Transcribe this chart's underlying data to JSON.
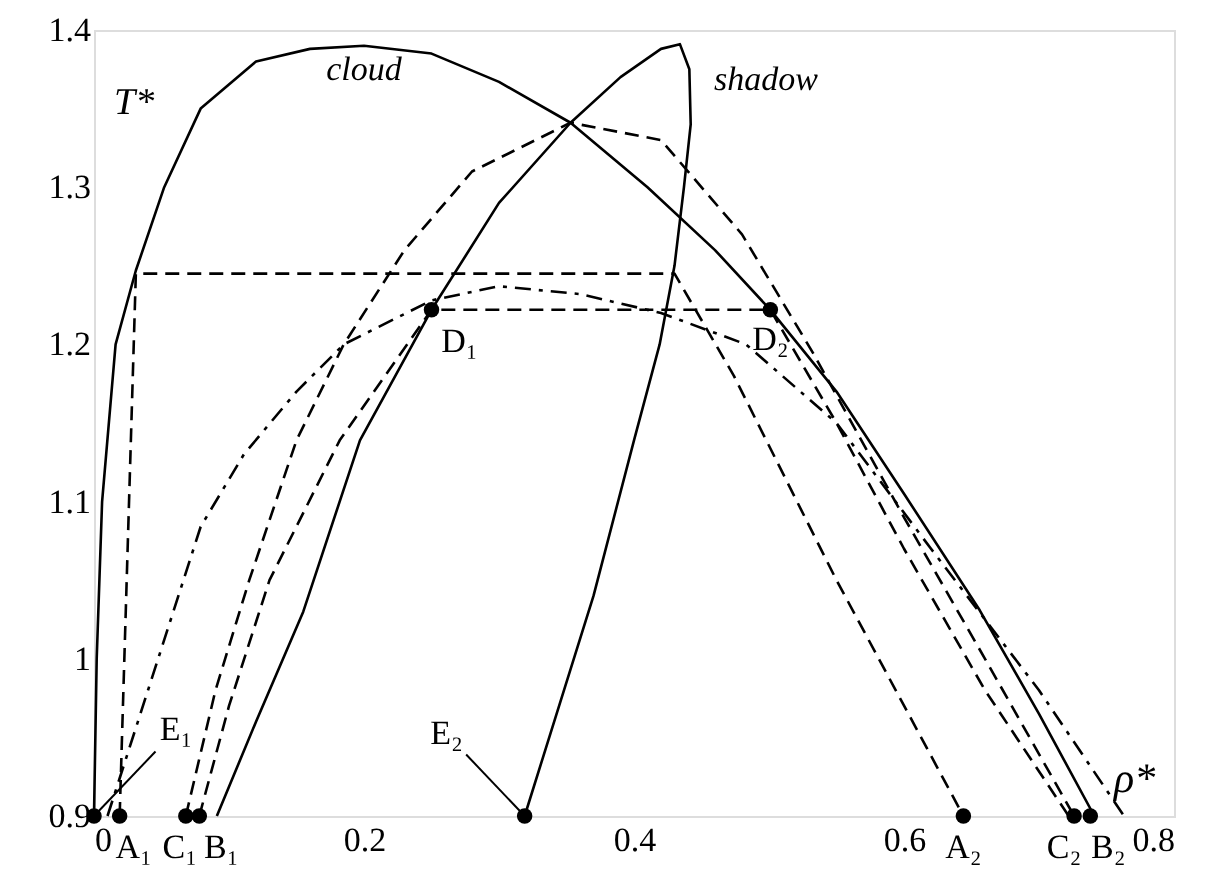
{
  "chart_data": {
    "type": "line",
    "xlabel": "ρ*",
    "ylabel": "T*",
    "xlim": [
      0,
      0.8
    ],
    "ylim": [
      0.9,
      1.4
    ],
    "xticks": [
      0,
      0.2,
      0.4,
      0.6,
      0.8
    ],
    "yticks": [
      0.9,
      1,
      1.1,
      1.2,
      1.3,
      1.4
    ],
    "grid": false,
    "marker": "none",
    "series": [
      {
        "color": "#000000",
        "line_style": "solid",
        "x": [
          0,
          0.002,
          0.006,
          0.016,
          0.031,
          0.052,
          0.079,
          0.12,
          0.16,
          0.2,
          0.25,
          0.3,
          0.353,
          0.41,
          0.46,
          0.501,
          0.55,
          0.6,
          0.656,
          0.7,
          0.741
        ],
        "values": [
          0.9,
          1.0,
          1.1,
          1.2,
          1.247,
          1.3,
          1.35,
          1.38,
          1.388,
          1.39,
          1.385,
          1.367,
          1.341,
          1.3,
          1.26,
          1.222,
          1.17,
          1.105,
          1.031,
          0.965,
          0.9
        ]
      },
      {
        "color": "#000000",
        "line_style": "solid",
        "x": [
          0.091,
          0.12,
          0.155,
          0.197,
          0.25,
          0.3,
          0.353,
          0.39,
          0.42,
          0.434,
          0.441,
          0.442,
          0.437,
          0.43,
          0.419,
          0.4,
          0.37,
          0.319
        ],
        "values": [
          0.9,
          0.96,
          1.03,
          1.139,
          1.222,
          1.29,
          1.341,
          1.37,
          1.388,
          1.391,
          1.375,
          1.34,
          1.3,
          1.25,
          1.2,
          1.139,
          1.04,
          0.9
        ]
      },
      {
        "color": "#000000",
        "line_style": "dashed",
        "x": [
          0.068,
          0.09,
          0.115,
          0.15,
          0.185,
          0.23,
          0.28,
          0.353,
          0.42,
          0.48,
          0.533,
          0.6,
          0.66,
          0.726
        ],
        "values": [
          0.9,
          0.98,
          1.05,
          1.139,
          1.2,
          1.26,
          1.31,
          1.341,
          1.33,
          1.27,
          1.194,
          1.09,
          1.0,
          0.9
        ]
      },
      {
        "color": "#000000",
        "line_style": "dashed",
        "x": [
          0.078,
          0.1,
          0.13,
          0.182,
          0.25,
          0.501,
          0.55,
          0.6,
          0.66,
          0.722
        ],
        "values": [
          0.9,
          0.97,
          1.05,
          1.139,
          1.222,
          1.222,
          1.15,
          1.07,
          0.98,
          0.9
        ]
      },
      {
        "color": "#000000",
        "line_style": "dashed",
        "x": [
          0.019,
          0.031,
          0.43,
          0.474,
          0.55,
          0.644
        ],
        "values": [
          0.9,
          1.245,
          1.245,
          1.18,
          1.05,
          0.9
        ]
      },
      {
        "color": "#000000",
        "line_style": "dashdot",
        "x": [
          0.01,
          0.04,
          0.079,
          0.111,
          0.15,
          0.185,
          0.25,
          0.3,
          0.36,
          0.42,
          0.483,
          0.55,
          0.62,
          0.7,
          0.763
        ],
        "values": [
          0.9,
          0.98,
          1.084,
          1.13,
          1.17,
          1.2,
          1.228,
          1.237,
          1.232,
          1.22,
          1.2,
          1.15,
          1.07,
          0.98,
          0.9
        ]
      },
      {
        "type": "scatter",
        "marker": "circle",
        "color": "#000000",
        "x": [
          0,
          0.019,
          0.068,
          0.078,
          0.319,
          0.644,
          0.726,
          0.738,
          0.25,
          0.501
        ],
        "values": [
          0.9,
          0.9,
          0.9,
          0.9,
          0.9,
          0.9,
          0.9,
          0.9,
          1.222,
          1.222
        ]
      }
    ],
    "annotations": [
      "cloud",
      "shadow",
      {
        "text": "A₁",
        "x": 0.019,
        "y": 0.9
      },
      {
        "text": "C₁",
        "x": 0.068,
        "y": 0.9
      },
      {
        "text": "B₁",
        "x": 0.078,
        "y": 0.9
      },
      {
        "text": "A₂",
        "x": 0.644,
        "y": 0.9
      },
      {
        "text": "C₂",
        "x": 0.726,
        "y": 0.9
      },
      {
        "text": "B₂",
        "x": 0.738,
        "y": 0.9
      },
      {
        "text": "D₁",
        "x": 0.25,
        "y": 1.222
      },
      {
        "text": "D₂",
        "x": 0.501,
        "y": 1.222
      },
      {
        "text": "E₁",
        "x": 0,
        "y": 0.9
      },
      {
        "text": "E₂",
        "x": 0.319,
        "y": 0.9
      }
    ]
  }
}
